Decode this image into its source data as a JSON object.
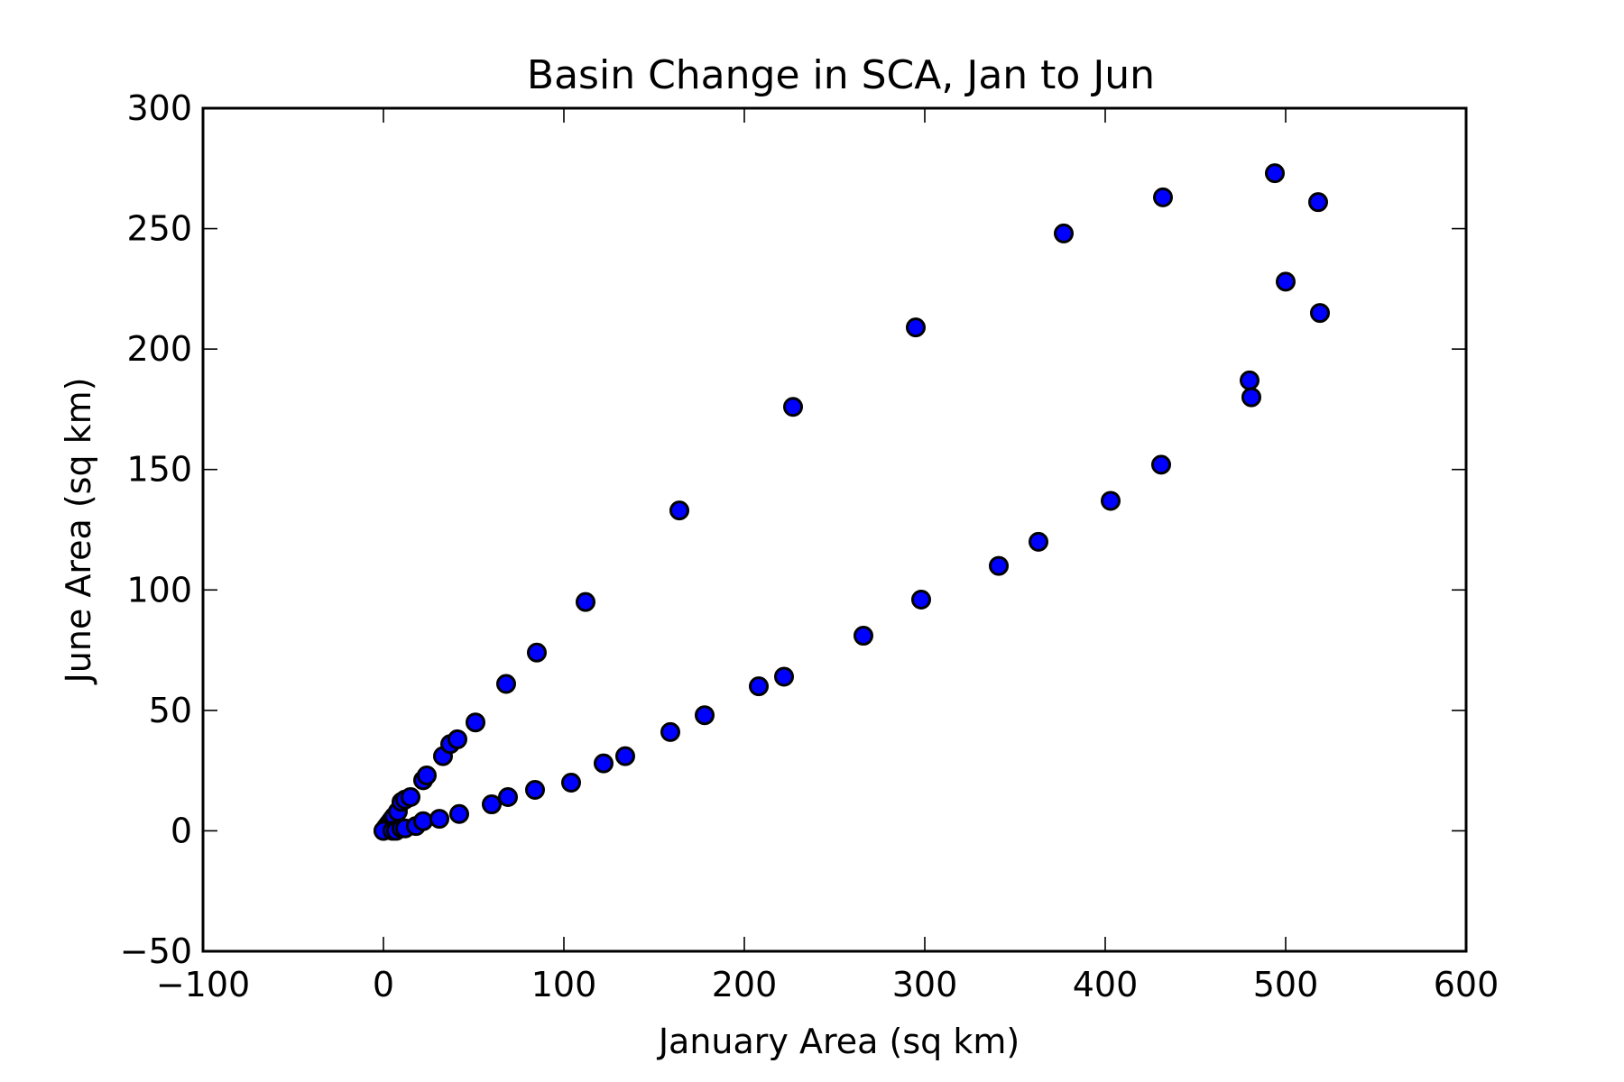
{
  "chart_data": {
    "type": "scatter",
    "title": "Basin Change in SCA, Jan to Jun",
    "xlabel": "January Area (sq km)",
    "ylabel": "June Area (sq km)",
    "xlim": [
      -100,
      600
    ],
    "ylim": [
      -50,
      300
    ],
    "xticks": [
      -100,
      0,
      100,
      200,
      300,
      400,
      500,
      600
    ],
    "yticks": [
      -50,
      0,
      50,
      100,
      150,
      200,
      250,
      300
    ],
    "xtick_labels": [
      "−100",
      "0",
      "100",
      "200",
      "300",
      "400",
      "500",
      "600"
    ],
    "ytick_labels": [
      "−50",
      "0",
      "50",
      "100",
      "150",
      "200",
      "250",
      "300"
    ],
    "grid": false,
    "marker_color": "#0000ff",
    "marker_edge_color": "#000000",
    "series": [
      {
        "x": [
          0,
          1,
          2,
          3,
          4,
          5,
          6,
          8,
          10,
          12,
          15,
          22,
          24,
          33,
          37,
          41,
          51,
          68,
          85,
          112,
          164,
          227,
          295,
          377,
          432,
          494,
          518,
          0,
          5,
          7,
          10,
          12,
          18,
          22,
          31,
          42,
          60,
          69,
          84,
          104,
          122,
          134,
          159,
          178,
          208,
          222,
          266,
          298,
          341,
          363,
          403,
          431,
          480,
          481,
          500,
          519
        ],
        "y": [
          0,
          1,
          2,
          3,
          4,
          5,
          6,
          8,
          12,
          13,
          14,
          21,
          23,
          31,
          36,
          38,
          45,
          61,
          74,
          95,
          133,
          176,
          209,
          248,
          263,
          273,
          261,
          0,
          0,
          0,
          1,
          1,
          2,
          4,
          5,
          7,
          11,
          14,
          17,
          20,
          28,
          31,
          41,
          48,
          60,
          64,
          81,
          96,
          110,
          120,
          137,
          152,
          187,
          180,
          228,
          215
        ]
      }
    ]
  }
}
